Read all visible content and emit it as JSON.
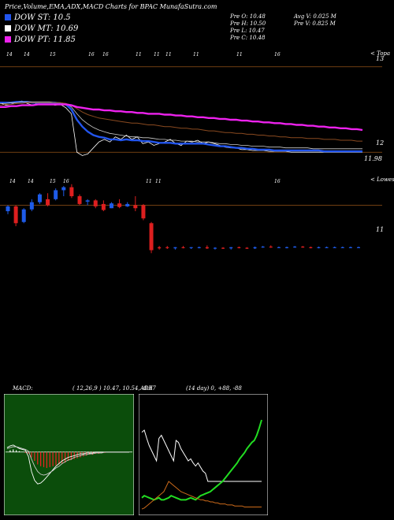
{
  "header": {
    "title": "Price,Volume,EMA,ADX,MACD Charts for BPAC MunafaSutra.com"
  },
  "legend": [
    {
      "label": "DOW ST: 10.5",
      "color": "#2255ee"
    },
    {
      "label": "DOW MT: 10.69",
      "color": "#ffffff"
    },
    {
      "label": "DOW PT: 11.85",
      "color": "#ee22ee"
    }
  ],
  "ohlc": {
    "col1": [
      "Pre   O: 10.48",
      "Pre   H: 10.50",
      "Pre   L: 10.47",
      "Pre   C: 10.48"
    ],
    "col2": [
      "Avg V: 0.025 M",
      "Pre   V: 0.825 M"
    ]
  },
  "top_chart": {
    "date_labels": [
      "14",
      "14",
      "15",
      "16",
      "16",
      "11",
      "11",
      "11",
      "11",
      "11",
      "16"
    ],
    "corner_label": "< Topa",
    "price_labels": [
      "13",
      "12",
      "11.98"
    ]
  },
  "candle_chart": {
    "date_labels": [
      "14",
      "14",
      "15",
      "16",
      "11",
      "11",
      "16"
    ],
    "corner_label": "< Lowes",
    "price_labels": [
      "11"
    ]
  },
  "macd": {
    "label": "MACD:",
    "params": "( 12,26,9 ) 10.47,  10.54,  -0.07"
  },
  "adx": {
    "label": "ADX",
    "params": "(14  day) 0,  +88,  -88"
  },
  "colors": {
    "ema_fast": "#2255ee",
    "ema_mid": "#ffffff",
    "ema_slow": "#ee22ee",
    "ema_brown": "#8a4a20",
    "price_grid": "#b5651d",
    "up_candle": "#1e5be8",
    "down_candle": "#dd1f1f",
    "macd_bg": "#0b4d0b",
    "adx_plus": "#22dd22",
    "adx_minus": "#cc6a1a"
  },
  "chart_data": [
    {
      "type": "line",
      "name": "price_ema_panel",
      "ylim": [
        11.9,
        13.1
      ],
      "x": [
        0,
        1,
        2,
        3,
        4,
        5,
        6,
        7,
        8,
        9,
        10,
        11,
        12,
        13,
        14,
        15,
        16,
        17,
        18,
        19,
        20,
        21,
        22,
        23,
        24,
        25,
        26,
        27,
        28,
        29,
        30,
        31,
        32,
        33,
        34,
        35,
        36,
        37,
        38,
        39,
        40,
        41,
        42,
        43,
        44,
        45,
        46,
        47,
        48,
        49,
        50,
        51,
        52,
        53,
        54,
        55,
        56,
        57,
        58,
        59,
        60,
        61,
        62,
        63,
        64,
        65,
        66
      ],
      "series": [
        {
          "values": [
            12.58,
            12.55,
            12.56,
            12.59,
            12.6,
            12.57,
            12.55,
            12.58,
            12.56,
            12.57,
            12.55,
            12.56,
            12.52,
            12.45,
            12.0,
            11.96,
            11.98,
            12.05,
            12.12,
            12.15,
            12.12,
            12.18,
            12.15,
            12.2,
            12.15,
            12.18,
            12.1,
            12.12,
            12.08,
            12.1,
            12.12,
            12.15,
            12.1,
            12.08,
            12.13,
            12.12,
            12.14,
            12.1,
            12.12,
            12.1,
            12.08,
            12.06,
            12.05,
            12.05,
            12.03,
            12.03,
            12.02,
            12.02,
            12.02,
            12.01,
            12.01,
            12.01,
            12.01,
            12.0,
            12.0,
            12.0,
            12.0,
            12.0,
            12.0,
            12.0,
            12.0,
            12.0,
            12.0,
            12.0,
            12.0,
            12.0,
            12.0
          ]
        },
        {
          "values": [
            12.58,
            12.58,
            12.58,
            12.59,
            12.59,
            12.59,
            12.58,
            12.58,
            12.58,
            12.58,
            12.58,
            12.57,
            12.56,
            12.5,
            12.38,
            12.3,
            12.24,
            12.2,
            12.18,
            12.17,
            12.15,
            12.15,
            12.14,
            12.15,
            12.14,
            12.14,
            12.13,
            12.13,
            12.12,
            12.11,
            12.11,
            12.11,
            12.1,
            12.1,
            12.1,
            12.1,
            12.1,
            12.1,
            12.09,
            12.08,
            12.07,
            12.07,
            12.06,
            12.05,
            12.05,
            12.04,
            12.04,
            12.03,
            12.03,
            12.03,
            12.02,
            12.02,
            12.02,
            12.02,
            12.02,
            12.02,
            12.02,
            12.02,
            12.02,
            12.01,
            12.01,
            12.01,
            12.01,
            12.01,
            12.01,
            12.01,
            12.01
          ]
        },
        {
          "values": [
            12.57,
            12.57,
            12.58,
            12.58,
            12.59,
            12.59,
            12.59,
            12.59,
            12.59,
            12.59,
            12.58,
            12.58,
            12.57,
            12.53,
            12.45,
            12.38,
            12.33,
            12.29,
            12.26,
            12.24,
            12.22,
            12.21,
            12.2,
            12.19,
            12.18,
            12.18,
            12.17,
            12.17,
            12.16,
            12.15,
            12.15,
            12.14,
            12.14,
            12.13,
            12.13,
            12.13,
            12.12,
            12.12,
            12.12,
            12.11,
            12.1,
            12.1,
            12.09,
            12.09,
            12.08,
            12.08,
            12.07,
            12.07,
            12.07,
            12.06,
            12.06,
            12.06,
            12.05,
            12.05,
            12.05,
            12.05,
            12.05,
            12.04,
            12.04,
            12.04,
            12.04,
            12.04,
            12.04,
            12.04,
            12.04,
            12.04,
            12.04
          ]
        },
        {
          "values": [
            12.55,
            12.56,
            12.56,
            12.57,
            12.57,
            12.58,
            12.58,
            12.58,
            12.58,
            12.58,
            12.58,
            12.58,
            12.57,
            12.55,
            12.51,
            12.47,
            12.44,
            12.42,
            12.4,
            12.39,
            12.38,
            12.37,
            12.36,
            12.35,
            12.34,
            12.34,
            12.33,
            12.32,
            12.32,
            12.31,
            12.3,
            12.3,
            12.29,
            12.28,
            12.28,
            12.27,
            12.27,
            12.26,
            12.25,
            12.25,
            12.24,
            12.23,
            12.23,
            12.22,
            12.22,
            12.21,
            12.21,
            12.2,
            12.2,
            12.19,
            12.19,
            12.18,
            12.18,
            12.17,
            12.17,
            12.17,
            12.16,
            12.16,
            12.16,
            12.15,
            12.15,
            12.15,
            12.14,
            12.14,
            12.14,
            12.13,
            12.13
          ]
        },
        {
          "values": [
            12.53,
            12.53,
            12.54,
            12.54,
            12.55,
            12.55,
            12.55,
            12.56,
            12.56,
            12.56,
            12.56,
            12.56,
            12.56,
            12.55,
            12.53,
            12.52,
            12.51,
            12.5,
            12.5,
            12.49,
            12.49,
            12.48,
            12.48,
            12.47,
            12.47,
            12.46,
            12.46,
            12.45,
            12.45,
            12.45,
            12.44,
            12.44,
            12.43,
            12.43,
            12.42,
            12.42,
            12.41,
            12.41,
            12.4,
            12.4,
            12.39,
            12.39,
            12.38,
            12.38,
            12.37,
            12.37,
            12.36,
            12.36,
            12.35,
            12.35,
            12.34,
            12.34,
            12.33,
            12.33,
            12.32,
            12.32,
            12.31,
            12.31,
            12.3,
            12.3,
            12.29,
            12.29,
            12.28,
            12.28,
            12.27,
            12.27,
            12.26
          ]
        }
      ]
    },
    {
      "type": "bar",
      "name": "candles",
      "ylim": [
        9.6,
        11.4
      ],
      "candles": [
        {
          "o": 10.9,
          "h": 11.0,
          "l": 10.85,
          "c": 10.98
        },
        {
          "o": 10.98,
          "h": 11.0,
          "l": 10.65,
          "c": 10.7
        },
        {
          "o": 10.72,
          "h": 10.95,
          "l": 10.7,
          "c": 10.93
        },
        {
          "o": 10.93,
          "h": 11.1,
          "l": 10.9,
          "c": 11.05
        },
        {
          "o": 11.05,
          "h": 11.2,
          "l": 11.02,
          "c": 11.18
        },
        {
          "o": 11.1,
          "h": 11.2,
          "l": 10.98,
          "c": 11.0
        },
        {
          "o": 11.1,
          "h": 11.28,
          "l": 11.08,
          "c": 11.25
        },
        {
          "o": 11.25,
          "h": 11.32,
          "l": 11.15,
          "c": 11.3
        },
        {
          "o": 11.3,
          "h": 11.35,
          "l": 11.12,
          "c": 11.15
        },
        {
          "o": 11.15,
          "h": 11.18,
          "l": 11.0,
          "c": 11.02
        },
        {
          "o": 11.06,
          "h": 11.1,
          "l": 11.0,
          "c": 11.08
        },
        {
          "o": 11.08,
          "h": 11.1,
          "l": 10.95,
          "c": 10.98
        },
        {
          "o": 11.02,
          "h": 11.08,
          "l": 10.9,
          "c": 10.92
        },
        {
          "o": 10.95,
          "h": 11.05,
          "l": 10.95,
          "c": 11.03
        },
        {
          "o": 11.03,
          "h": 11.1,
          "l": 10.95,
          "c": 10.97
        },
        {
          "o": 10.98,
          "h": 11.05,
          "l": 10.97,
          "c": 11.02
        },
        {
          "o": 11.0,
          "h": 11.15,
          "l": 10.9,
          "c": 10.95
        },
        {
          "o": 11.0,
          "h": 11.02,
          "l": 10.75,
          "c": 10.78
        },
        {
          "o": 10.7,
          "h": 10.72,
          "l": 10.2,
          "c": 10.25
        },
        {
          "o": 10.3,
          "h": 10.32,
          "l": 10.26,
          "c": 10.28
        },
        {
          "o": 10.3,
          "h": 10.32,
          "l": 10.27,
          "c": 10.29
        },
        {
          "o": 10.28,
          "h": 10.3,
          "l": 10.26,
          "c": 10.3
        },
        {
          "o": 10.3,
          "h": 10.32,
          "l": 10.28,
          "c": 10.29
        },
        {
          "o": 10.29,
          "h": 10.3,
          "l": 10.27,
          "c": 10.3
        },
        {
          "o": 10.29,
          "h": 10.31,
          "l": 10.28,
          "c": 10.3
        },
        {
          "o": 10.3,
          "h": 10.33,
          "l": 10.27,
          "c": 10.28
        },
        {
          "o": 10.28,
          "h": 10.3,
          "l": 10.26,
          "c": 10.29
        },
        {
          "o": 10.29,
          "h": 10.3,
          "l": 10.27,
          "c": 10.28
        },
        {
          "o": 10.28,
          "h": 10.3,
          "l": 10.26,
          "c": 10.3
        },
        {
          "o": 10.3,
          "h": 10.31,
          "l": 10.28,
          "c": 10.29
        },
        {
          "o": 10.29,
          "h": 10.3,
          "l": 10.27,
          "c": 10.28
        },
        {
          "o": 10.28,
          "h": 10.31,
          "l": 10.27,
          "c": 10.3
        },
        {
          "o": 10.3,
          "h": 10.32,
          "l": 10.29,
          "c": 10.31
        },
        {
          "o": 10.31,
          "h": 10.33,
          "l": 10.29,
          "c": 10.3
        },
        {
          "o": 10.3,
          "h": 10.31,
          "l": 10.29,
          "c": 10.3
        },
        {
          "o": 10.29,
          "h": 10.31,
          "l": 10.28,
          "c": 10.3
        },
        {
          "o": 10.3,
          "h": 10.32,
          "l": 10.29,
          "c": 10.31
        },
        {
          "o": 10.31,
          "h": 10.32,
          "l": 10.29,
          "c": 10.3
        },
        {
          "o": 10.3,
          "h": 10.31,
          "l": 10.28,
          "c": 10.29
        },
        {
          "o": 10.29,
          "h": 10.31,
          "l": 10.28,
          "c": 10.3
        },
        {
          "o": 10.3,
          "h": 10.31,
          "l": 10.29,
          "c": 10.3
        },
        {
          "o": 10.3,
          "h": 10.31,
          "l": 10.29,
          "c": 10.3
        },
        {
          "o": 10.3,
          "h": 10.31,
          "l": 10.29,
          "c": 10.3
        },
        {
          "o": 10.3,
          "h": 10.31,
          "l": 10.29,
          "c": 10.3
        },
        {
          "o": 10.3,
          "h": 10.31,
          "l": 10.29,
          "c": 10.3
        }
      ]
    },
    {
      "type": "bar",
      "name": "macd",
      "ylim": [
        -0.5,
        0.3
      ],
      "histogram": [
        0,
        0.02,
        0.03,
        0.02,
        0.01,
        0.0,
        -0.01,
        -0.02,
        -0.06,
        -0.1,
        -0.14,
        -0.16,
        -0.17,
        -0.18,
        -0.17,
        -0.16,
        -0.15,
        -0.14,
        -0.13,
        -0.12,
        -0.1,
        -0.09,
        -0.08,
        -0.07,
        -0.06,
        -0.05,
        -0.04,
        -0.03,
        -0.03,
        -0.02,
        -0.02,
        -0.01,
        -0.01,
        0,
        0,
        0,
        0,
        0,
        0,
        0,
        0
      ],
      "series": [
        {
          "values": [
            0.05,
            0.07,
            0.08,
            0.06,
            0.04,
            0.03,
            0.02,
            -0.05,
            -0.22,
            -0.32,
            -0.36,
            -0.35,
            -0.32,
            -0.28,
            -0.24,
            -0.2,
            -0.16,
            -0.13,
            -0.1,
            -0.08,
            -0.06,
            -0.05,
            -0.04,
            -0.03,
            -0.02,
            -0.02,
            -0.01,
            -0.01,
            -0.01,
            0,
            0,
            0,
            0,
            0,
            0,
            0,
            0,
            0,
            0,
            0,
            0
          ]
        },
        {
          "values": [
            0.04,
            0.05,
            0.06,
            0.06,
            0.05,
            0.04,
            0.03,
            0.01,
            -0.08,
            -0.16,
            -0.22,
            -0.25,
            -0.26,
            -0.25,
            -0.23,
            -0.21,
            -0.18,
            -0.16,
            -0.13,
            -0.11,
            -0.09,
            -0.08,
            -0.06,
            -0.05,
            -0.04,
            -0.03,
            -0.03,
            -0.02,
            -0.02,
            -0.01,
            -0.01,
            -0.01,
            0,
            0,
            0,
            0,
            0,
            0,
            0,
            0,
            0
          ]
        }
      ]
    },
    {
      "type": "line",
      "name": "adx",
      "ylim": [
        0,
        100
      ],
      "series": [
        {
          "values": [
            78,
            80,
            72,
            65,
            60,
            55,
            50,
            72,
            75,
            70,
            65,
            60,
            55,
            50,
            70,
            68,
            62,
            58,
            54,
            50,
            52,
            48,
            45,
            48,
            44,
            40,
            38,
            30,
            30,
            30,
            30,
            30,
            30,
            30,
            30,
            30,
            30,
            30,
            30,
            30,
            30,
            30,
            30,
            30,
            30,
            30,
            30,
            30,
            30,
            30
          ]
        },
        {
          "values": [
            14,
            16,
            15,
            14,
            13,
            12,
            13,
            14,
            12,
            12,
            13,
            14,
            16,
            15,
            14,
            13,
            12,
            12,
            12,
            13,
            14,
            13,
            12,
            14,
            16,
            17,
            18,
            19,
            20,
            22,
            24,
            26,
            28,
            30,
            33,
            36,
            39,
            42,
            45,
            48,
            52,
            55,
            58,
            62,
            65,
            68,
            70,
            75,
            82,
            90
          ]
        },
        {
          "values": [
            3,
            4,
            6,
            8,
            10,
            12,
            14,
            16,
            18,
            20,
            25,
            30,
            28,
            26,
            24,
            22,
            20,
            19,
            18,
            17,
            16,
            15,
            14,
            13,
            12,
            12,
            11,
            11,
            10,
            10,
            9,
            9,
            8,
            8,
            8,
            7,
            7,
            7,
            6,
            6,
            6,
            6,
            5,
            5,
            5,
            5,
            5,
            5,
            5,
            5
          ]
        }
      ]
    }
  ]
}
